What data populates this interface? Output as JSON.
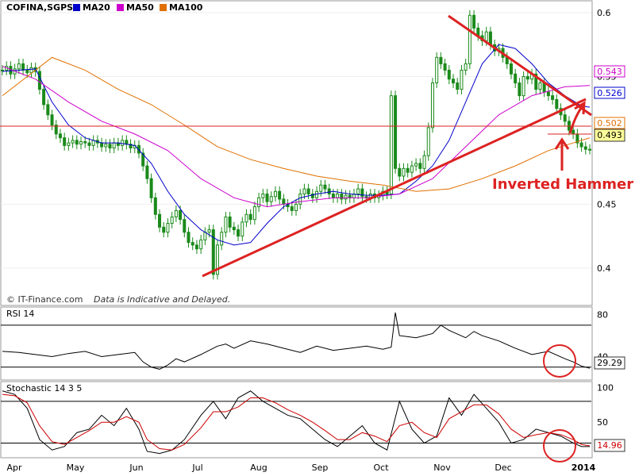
{
  "chart_data": [
    {
      "panel": "price",
      "type": "candlestick",
      "symbol": "COFINA,SGPS",
      "legend": [
        {
          "label": "MA20",
          "color": "#0000cc"
        },
        {
          "label": "MA50",
          "color": "#cc00cc"
        },
        {
          "label": "MA100",
          "color": "#e07000"
        }
      ],
      "y_ticks": [
        "0.6",
        "0.55",
        "0.45",
        "0.4"
      ],
      "ylim": [
        0.38,
        0.605
      ],
      "candle_color": "#1a8a1a",
      "series": [
        {
          "name": "Close",
          "color": "#1a8a1a",
          "x": [
            0,
            5,
            10,
            15,
            20,
            25,
            30,
            35,
            40,
            45,
            50,
            55,
            60,
            65,
            70,
            75,
            80,
            85,
            90,
            95,
            100,
            105,
            110,
            115,
            120,
            125,
            130,
            135,
            140,
            145,
            150,
            155,
            160,
            165,
            170,
            175,
            180,
            185,
            190,
            195,
            200,
            205,
            210,
            215,
            220,
            225,
            230,
            235,
            240,
            245,
            250,
            255,
            260,
            265,
            270,
            275,
            280,
            285,
            290,
            295,
            300,
            305,
            310,
            315,
            320,
            325,
            330,
            335,
            340,
            345,
            350,
            355,
            360,
            365,
            370,
            375,
            380,
            385,
            390,
            395,
            400,
            405,
            410,
            415,
            420,
            425,
            430,
            435,
            440,
            445,
            450,
            455,
            460,
            465,
            470,
            475,
            480,
            485,
            490,
            495,
            500,
            505,
            510,
            515,
            520,
            525,
            530,
            535,
            540,
            545,
            550,
            555,
            560,
            565,
            570,
            575,
            580,
            585,
            590,
            595,
            600,
            605,
            610,
            615,
            620,
            625,
            630,
            635,
            640,
            645,
            650,
            655,
            660,
            665,
            670,
            675,
            680,
            685,
            690,
            695,
            700,
            705,
            710
          ],
          "values": [
            0.555,
            0.558,
            0.552,
            0.556,
            0.56,
            0.555,
            0.553,
            0.557,
            0.554,
            0.54,
            0.528,
            0.52,
            0.512,
            0.505,
            0.502,
            0.496,
            0.498,
            0.5,
            0.497,
            0.499,
            0.498,
            0.496,
            0.5,
            0.498,
            0.495,
            0.497,
            0.494,
            0.498,
            0.496,
            0.5,
            0.497,
            0.494,
            0.496,
            0.49,
            0.48,
            0.47,
            0.455,
            0.442,
            0.432,
            0.428,
            0.435,
            0.44,
            0.445,
            0.438,
            0.428,
            0.42,
            0.418,
            0.415,
            0.422,
            0.428,
            0.43,
            0.395,
            0.418,
            0.428,
            0.44,
            0.432,
            0.43,
            0.425,
            0.436,
            0.442,
            0.438,
            0.448,
            0.455,
            0.458,
            0.452,
            0.456,
            0.46,
            0.454,
            0.45,
            0.448,
            0.445,
            0.45,
            0.458,
            0.462,
            0.458,
            0.455,
            0.46,
            0.465,
            0.462,
            0.458,
            0.455,
            0.458,
            0.454,
            0.457,
            0.455,
            0.458,
            0.462,
            0.456,
            0.455,
            0.458,
            0.455,
            0.457,
            0.46,
            0.458,
            0.535,
            0.478,
            0.472,
            0.478,
            0.475,
            0.48,
            0.482,
            0.478,
            0.488,
            0.51,
            0.545,
            0.565,
            0.56,
            0.555,
            0.548,
            0.545,
            0.54,
            0.555,
            0.56,
            0.598,
            0.588,
            0.582,
            0.578,
            0.585,
            0.575,
            0.57,
            0.572,
            0.565,
            0.56,
            0.552,
            0.545,
            0.535,
            0.55,
            0.548,
            0.552,
            0.54,
            0.545,
            0.538,
            0.535,
            0.532,
            0.525,
            0.52,
            0.515,
            0.508,
            0.505,
            0.498,
            0.495,
            0.493,
            0.493
          ]
        },
        {
          "name": "MA20",
          "color": "#0000cc",
          "x": [
            0,
            20,
            40,
            60,
            80,
            100,
            120,
            140,
            160,
            180,
            200,
            220,
            240,
            260,
            280,
            300,
            320,
            340,
            360,
            380,
            400,
            420,
            440,
            460,
            480,
            500,
            520,
            540,
            560,
            580,
            600,
            620,
            640,
            660,
            680,
            700,
            710
          ],
          "values": [
            0.554,
            0.555,
            0.556,
            0.53,
            0.512,
            0.502,
            0.498,
            0.498,
            0.496,
            0.482,
            0.46,
            0.442,
            0.43,
            0.422,
            0.418,
            0.42,
            0.435,
            0.448,
            0.455,
            0.458,
            0.46,
            0.458,
            0.457,
            0.457,
            0.458,
            0.468,
            0.48,
            0.5,
            0.53,
            0.56,
            0.575,
            0.572,
            0.56,
            0.545,
            0.535,
            0.527,
            0.526
          ]
        },
        {
          "name": "MA50",
          "color": "#cc00cc",
          "x": [
            0,
            40,
            80,
            120,
            160,
            200,
            240,
            280,
            320,
            360,
            400,
            440,
            480,
            520,
            560,
            600,
            640,
            680,
            710
          ],
          "values": [
            0.558,
            0.548,
            0.53,
            0.515,
            0.505,
            0.492,
            0.47,
            0.455,
            0.448,
            0.452,
            0.455,
            0.455,
            0.458,
            0.47,
            0.495,
            0.52,
            0.535,
            0.542,
            0.543
          ]
        },
        {
          "name": "MA100",
          "color": "#e07000",
          "x": [
            0,
            60,
            100,
            140,
            180,
            220,
            260,
            300,
            340,
            380,
            420,
            460,
            500,
            540,
            580,
            620,
            660,
            700,
            710
          ],
          "values": [
            0.535,
            0.565,
            0.555,
            0.54,
            0.528,
            0.512,
            0.495,
            0.485,
            0.478,
            0.472,
            0.468,
            0.465,
            0.46,
            0.462,
            0.47,
            0.48,
            0.492,
            0.5,
            0.502
          ]
        }
      ],
      "x_ticks": [
        "Apr",
        "May",
        "Jun",
        "Jul",
        "Aug",
        "Sep",
        "Oct",
        "Nov",
        "Dec",
        "2014"
      ],
      "value_tags": [
        {
          "value": "0.543",
          "color": "#cc00cc",
          "bg": "#ffffff"
        },
        {
          "value": "0.526",
          "color": "#0000cc",
          "bg": "#ffffff"
        },
        {
          "value": "0.502",
          "color": "#e07000",
          "bg": "#ffffff"
        },
        {
          "value": "0.493",
          "color": "#000000",
          "bg": "#ffff99"
        }
      ],
      "annotations": {
        "pattern_label": "Inverted Hammer",
        "pattern_color": "#dd2222",
        "footer_source": "© IT-Finance.com",
        "footer_note": "Data is Indicative and Delayed."
      }
    },
    {
      "panel": "rsi",
      "type": "line",
      "title": "RSI 14",
      "y_ticks": [
        "80",
        "40"
      ],
      "ylim": [
        20,
        85
      ],
      "reference_lines": [
        70,
        30
      ],
      "current_value": "29.29",
      "series": [
        {
          "name": "RSI",
          "color": "#000000",
          "x": [
            0,
            20,
            40,
            60,
            80,
            100,
            120,
            140,
            160,
            170,
            180,
            190,
            200,
            210,
            220,
            240,
            260,
            270,
            280,
            300,
            320,
            340,
            360,
            380,
            400,
            420,
            440,
            460,
            470,
            475,
            480,
            500,
            520,
            530,
            540,
            560,
            570,
            580,
            600,
            620,
            640,
            660,
            680,
            690,
            700,
            710
          ],
          "values": [
            45,
            44,
            42,
            40,
            43,
            45,
            40,
            42,
            44,
            35,
            30,
            28,
            32,
            38,
            35,
            42,
            50,
            52,
            48,
            55,
            52,
            48,
            44,
            50,
            46,
            48,
            50,
            47,
            49,
            82,
            60,
            58,
            62,
            70,
            65,
            58,
            64,
            60,
            55,
            48,
            42,
            45,
            38,
            35,
            31,
            29
          ]
        }
      ]
    },
    {
      "panel": "stochastic",
      "type": "line",
      "title": "Stochastic 14 3 5",
      "y_ticks": [
        "100",
        "50"
      ],
      "ylim": [
        0,
        105
      ],
      "reference_lines": [
        80,
        20
      ],
      "current_value": "14.96",
      "series": [
        {
          "name": "%K",
          "color": "#000000",
          "x": [
            0,
            15,
            30,
            45,
            60,
            75,
            90,
            105,
            120,
            135,
            150,
            165,
            175,
            190,
            205,
            220,
            240,
            255,
            270,
            285,
            300,
            315,
            330,
            345,
            360,
            375,
            390,
            405,
            420,
            435,
            450,
            465,
            480,
            495,
            510,
            525,
            540,
            555,
            570,
            585,
            600,
            615,
            630,
            645,
            660,
            675,
            690,
            700,
            710
          ],
          "values": [
            95,
            90,
            70,
            25,
            10,
            15,
            35,
            40,
            60,
            45,
            70,
            40,
            8,
            5,
            10,
            25,
            60,
            80,
            55,
            85,
            95,
            80,
            70,
            60,
            55,
            40,
            25,
            15,
            30,
            45,
            20,
            10,
            80,
            40,
            20,
            30,
            85,
            60,
            90,
            70,
            50,
            20,
            25,
            40,
            35,
            30,
            20,
            15,
            15
          ]
        },
        {
          "name": "%D",
          "color": "#cc0000",
          "x": [
            0,
            15,
            30,
            45,
            60,
            75,
            90,
            105,
            120,
            135,
            150,
            165,
            175,
            190,
            205,
            220,
            240,
            255,
            270,
            285,
            300,
            315,
            330,
            345,
            360,
            375,
            390,
            405,
            420,
            435,
            450,
            465,
            480,
            495,
            510,
            525,
            540,
            555,
            570,
            585,
            600,
            615,
            630,
            645,
            660,
            675,
            690,
            700,
            710
          ],
          "values": [
            90,
            88,
            78,
            45,
            22,
            18,
            28,
            38,
            50,
            50,
            58,
            50,
            25,
            12,
            10,
            18,
            42,
            65,
            65,
            72,
            85,
            85,
            78,
            68,
            60,
            50,
            38,
            25,
            25,
            35,
            30,
            22,
            45,
            50,
            35,
            28,
            55,
            65,
            75,
            75,
            62,
            40,
            28,
            32,
            35,
            32,
            25,
            18,
            16
          ]
        }
      ]
    }
  ]
}
